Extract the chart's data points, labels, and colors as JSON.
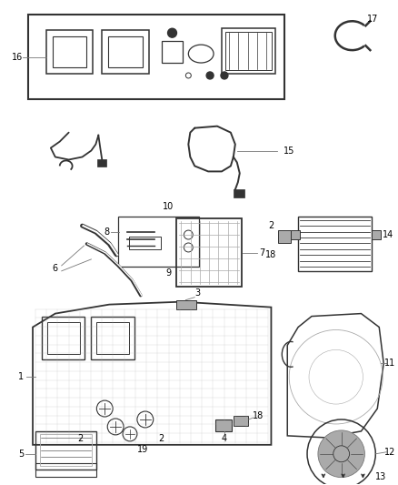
{
  "bg_color": "#ffffff",
  "fig_width": 4.38,
  "fig_height": 5.33,
  "dpi": 100,
  "line_color": "#555555",
  "text_color": "#000000",
  "dark_gray": "#333333",
  "light_gray": "#aaaaaa",
  "mid_gray": "#777777"
}
